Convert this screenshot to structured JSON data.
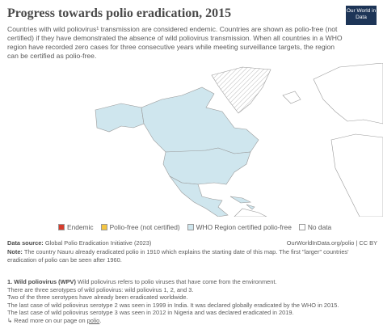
{
  "header": {
    "title": "Progress towards polio eradication, 2015",
    "subtitle": "Countries with wild poliovirus¹ transmission are considered endemic. Countries are shown as polio-free (not certified) if they have demonstrated the absence of wild poliovirus transmission. When all countries in a WHO region have recorded zero cases for three consecutive years while meeting surveillance targets, the region can be certified as polio-free.",
    "logo": "Our World in Data"
  },
  "legend": {
    "items": [
      {
        "label": "Endemic",
        "color": "#d73c2c"
      },
      {
        "label": "Polio-free (not certified)",
        "color": "#f4c542"
      },
      {
        "label": "WHO Region certified polio-free",
        "color": "#cfe6ee"
      },
      {
        "label": "No data",
        "color": "#ffffff"
      }
    ]
  },
  "footer": {
    "source_label": "Data source:",
    "source": "Global Polio Eradication Initiative (2023)",
    "url": "OurWorldInData.org/polio | CC BY",
    "note_label": "Note:",
    "note": "The country Nauru already eradicated polio in 1910 which explains the starting date of this map. The first \"larger\" countries' eradication of polio can be seen after 1960.",
    "footnote_label": "1. Wild poliovirus (WPV)",
    "footnote_lines": [
      "Wild poliovirus refers to polio viruses that have come from the environment.",
      "There are three serotypes of wild poliovirus: wild poliovirus 1, 2, and 3.",
      "Two of the three serotypes have already been eradicated worldwide.",
      "The last case of wild poliovirus serotype 2 was seen in 1999 in India. It was declared globally eradicated by the WHO in 2015.",
      "The last case of wild poliovirus serotype 3 was seen in 2012 in Nigeria and was declared eradicated in 2019."
    ],
    "read_more": "Read more on our page on",
    "read_more_link": "polio"
  }
}
